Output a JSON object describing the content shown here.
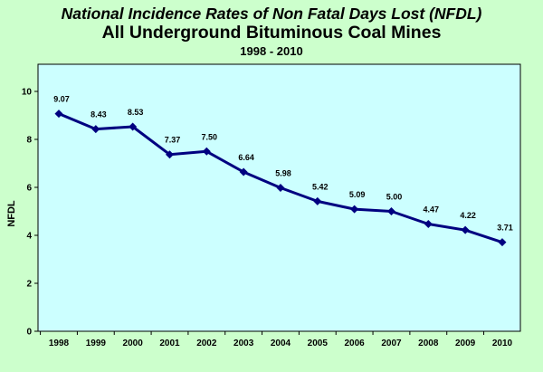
{
  "chart_data": {
    "type": "line",
    "title": "National Incidence Rates of Non Fatal Days Lost (NFDL)",
    "subtitle": "All Underground Bituminous Coal Mines",
    "date_range": "1998 - 2010",
    "xlabel": "",
    "ylabel": "NFDL",
    "categories": [
      "1998",
      "1999",
      "2000",
      "2001",
      "2002",
      "2003",
      "2004",
      "2005",
      "2006",
      "2007",
      "2008",
      "2009",
      "2010"
    ],
    "values": [
      9.07,
      8.43,
      8.53,
      7.37,
      7.5,
      6.64,
      5.98,
      5.42,
      5.09,
      5.0,
      4.47,
      4.22,
      3.71
    ],
    "data_labels": [
      "9.07",
      "8.43",
      "8.53",
      "7.37",
      "7.50",
      "6.64",
      "5.98",
      "5.42",
      "5.09",
      "5.00",
      "4.47",
      "4.22",
      "3.71"
    ],
    "ylim": [
      0,
      10
    ],
    "yticks": [
      "0",
      "2",
      "4",
      "6",
      "8",
      "10"
    ],
    "grid": false,
    "legend": "none",
    "colors": {
      "background": "#ccffcc",
      "plot_background": "#ccffff",
      "series": "#000080",
      "axis": "#000000"
    }
  }
}
